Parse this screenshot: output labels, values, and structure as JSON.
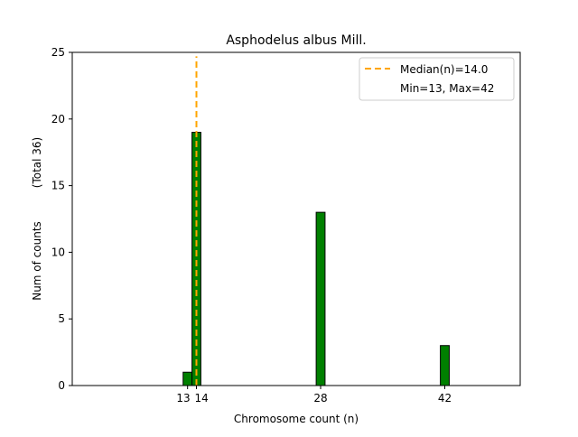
{
  "chart_data": {
    "type": "bar",
    "title": "Asphodelus albus Mill.",
    "xlabel": "Chromosome count (n)",
    "ylabel": "Num of counts",
    "ylabel2": "(Total 36)",
    "xlim": [
      0,
      50.5
    ],
    "ylim": [
      0,
      25
    ],
    "x": [
      13,
      14,
      28,
      42
    ],
    "values": [
      1,
      19,
      13,
      3
    ],
    "bin_range": [
      12.5,
      45.5
    ],
    "bar_width": 1,
    "bar_color": "#008000",
    "xticks": [
      13,
      14,
      28,
      42
    ],
    "yticks": [
      0,
      5,
      10,
      15,
      20,
      25
    ],
    "median": 14.0,
    "median_color": "#FFA500",
    "legend": {
      "placement": "top-right",
      "entries": [
        "Median(n)=14.0",
        "Min=13, Max=42"
      ]
    },
    "grid": false
  }
}
